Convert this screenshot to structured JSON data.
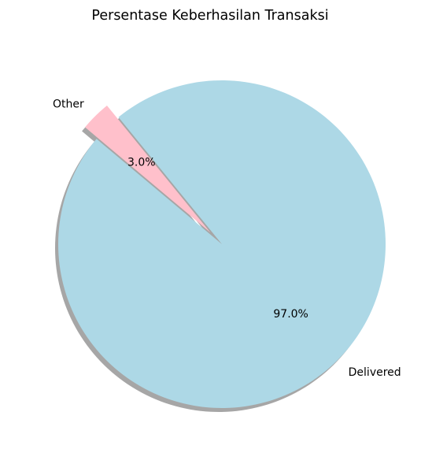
{
  "chart_data": {
    "type": "pie",
    "title": "Persentase Keberhasilan Transaksi",
    "slices": [
      {
        "label": "Delivered",
        "value": 97.0,
        "pct_label": "97.0%",
        "color": "#add8e6",
        "exploded": false
      },
      {
        "label": "Other",
        "value": 3.0,
        "pct_label": "3.0%",
        "color": "#ffc0cb",
        "exploded": true
      }
    ],
    "shadow": true,
    "start_angle_deg": 140
  }
}
